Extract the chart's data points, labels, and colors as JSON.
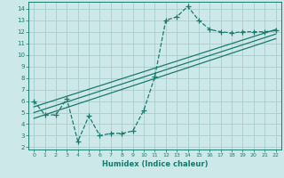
{
  "xlabel": "Humidex (Indice chaleur)",
  "bg_color": "#cce8e8",
  "grid_color": "#aacccc",
  "line_color": "#1a7a6e",
  "xlim": [
    -0.5,
    22.5
  ],
  "ylim": [
    1.8,
    14.6
  ],
  "xticks": [
    0,
    1,
    2,
    3,
    4,
    5,
    6,
    7,
    8,
    9,
    10,
    11,
    12,
    13,
    14,
    15,
    16,
    17,
    18,
    19,
    20,
    21,
    22
  ],
  "yticks": [
    2,
    3,
    4,
    5,
    6,
    7,
    8,
    9,
    10,
    11,
    12,
    13,
    14
  ],
  "main_series_x": [
    0,
    1,
    2,
    3,
    4,
    5,
    6,
    7,
    8,
    9,
    10,
    11,
    12,
    13,
    14,
    15,
    16,
    17,
    18,
    19,
    20,
    21,
    22
  ],
  "main_series_y": [
    6.0,
    4.8,
    4.8,
    6.2,
    2.5,
    4.7,
    3.0,
    3.2,
    3.2,
    3.4,
    5.2,
    8.1,
    13.0,
    13.3,
    14.2,
    13.0,
    12.2,
    12.0,
    11.9,
    12.0,
    12.0,
    12.0,
    12.1
  ],
  "line1_x": [
    0,
    22
  ],
  "line1_y": [
    5.5,
    12.2
  ],
  "line2_x": [
    0,
    22
  ],
  "line2_y": [
    5.0,
    11.8
  ],
  "line3_x": [
    0,
    22
  ],
  "line3_y": [
    4.5,
    11.4
  ],
  "marker": "+",
  "markersize": 4,
  "markeredgewidth": 0.9,
  "linewidth": 0.9
}
